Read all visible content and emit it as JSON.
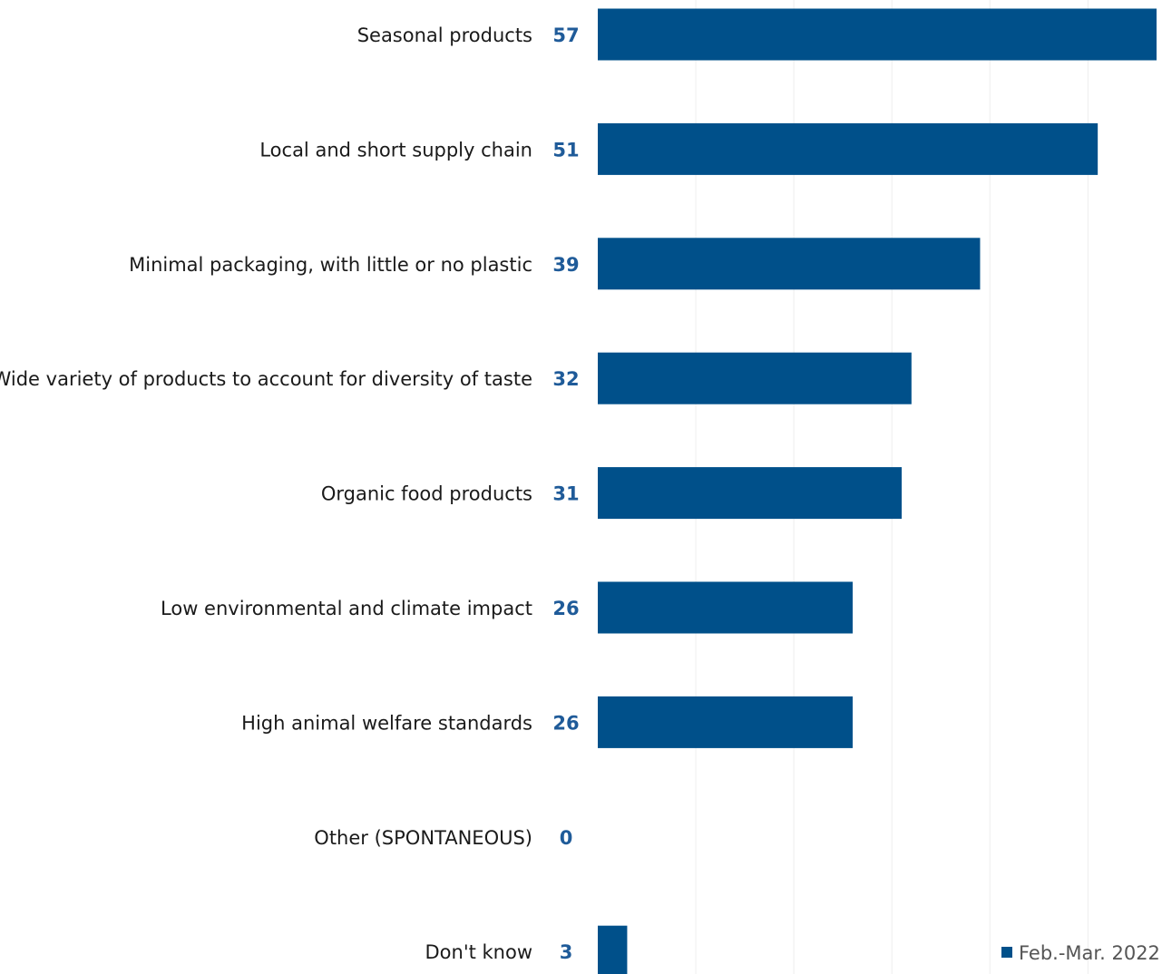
{
  "chart_data": {
    "type": "bar",
    "orientation": "horizontal",
    "categories": [
      "Seasonal products",
      "Local and short supply chain",
      "Minimal packaging, with little or no plastic",
      "Wide variety of products to account for diversity of taste",
      "Organic food products",
      "Low environmental and climate impact",
      "High animal welfare standards",
      "Other (SPONTANEOUS)",
      "Don't know"
    ],
    "series": [
      {
        "name": "Feb.-Mar. 2022",
        "values": [
          57,
          51,
          39,
          32,
          31,
          26,
          26,
          0,
          3
        ]
      }
    ],
    "xlim": [
      0,
      57
    ],
    "grid": true,
    "legend": "bottom-right",
    "colors": {
      "bar": "#00508a",
      "value_label": "#1f5b99",
      "grid": "#eeeeee"
    }
  }
}
